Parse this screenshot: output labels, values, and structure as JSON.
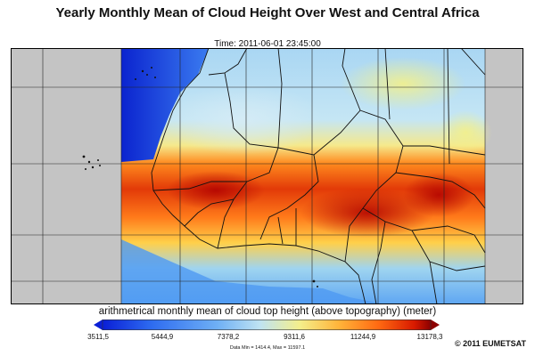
{
  "title": "Yearly Monthly Mean of Cloud Height Over West and Central Africa",
  "time_label": "Time: 2011-06-01 23:45:00",
  "colorbar": {
    "title": "arithmetrical monthly mean of cloud top height (above topography) (meter)",
    "ticks": [
      "3511,5",
      "5444,9",
      "7378,2",
      "9311,6",
      "11244,9",
      "13178,3"
    ],
    "min_max_note": "Data Min = 1414.4, Max = 11597.1",
    "colors": [
      "#0a1fd6",
      "#2e6cf0",
      "#6fb0f5",
      "#bfe3f2",
      "#f4ef8c",
      "#ffb43a",
      "#ff6a12",
      "#d81a00",
      "#8c0000"
    ]
  },
  "copyright": "© 2011 EUMETSAT",
  "colors": {
    "no_data": "#c4c4c4",
    "ocean_deep": "#1339d4",
    "border": "#111111"
  }
}
